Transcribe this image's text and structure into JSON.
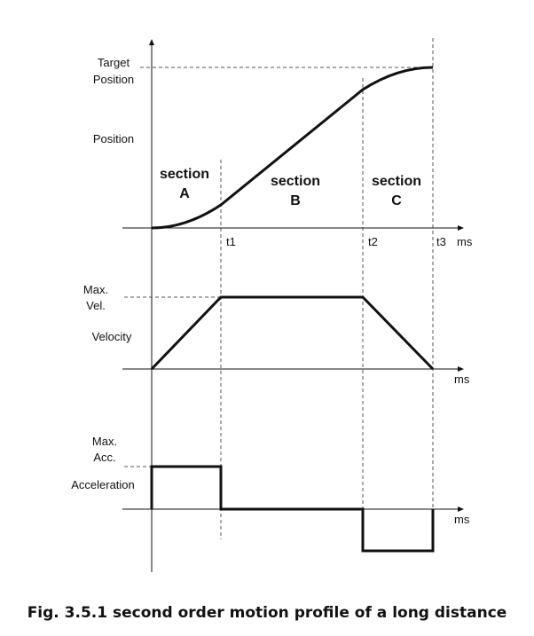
{
  "position_panel": {
    "y_label": "Position",
    "target_label_line1": "Target",
    "target_label_line2": "Position",
    "time_unit": "ms",
    "t1": "t1",
    "t2": "t2",
    "t3": "t3",
    "sections": [
      {
        "line1": "section",
        "line2": "A"
      },
      {
        "line1": "section",
        "line2": "B"
      },
      {
        "line1": "section",
        "line2": "C"
      }
    ]
  },
  "velocity_panel": {
    "y_label": "Velocity",
    "max_label_line1": "Max.",
    "max_label_line2": "Vel.",
    "time_unit": "ms"
  },
  "acceleration_panel": {
    "y_label": "Acceleration",
    "max_label_line1": "Max.",
    "max_label_line2": "Acc.",
    "time_unit": "ms"
  },
  "caption": "Fig. 3.5.1 second order motion profile of a long distance"
}
